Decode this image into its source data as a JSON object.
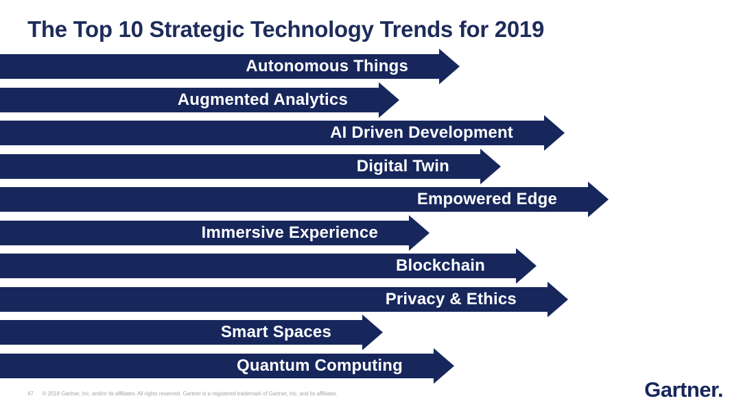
{
  "slide": {
    "title": "The Top 10 Strategic Technology Trends for 2019"
  },
  "chart_data": {
    "type": "bar",
    "orientation": "horizontal",
    "title": "The Top 10 Strategic Technology Trends for 2019",
    "categories": [
      "Autonomous Things",
      "Augmented Analytics",
      "AI Driven Development",
      "Digital Twin",
      "Empowered Edge",
      "Immersive Experience",
      "Blockchain",
      "Privacy & Ethics",
      "Smart Spaces",
      "Quantum Computing"
    ],
    "items": [
      {
        "label": "Autonomous Things",
        "length": 640
      },
      {
        "label": "Augmented Analytics",
        "length": 552
      },
      {
        "label": "AI Driven Development",
        "length": 793
      },
      {
        "label": "Digital Twin",
        "length": 700
      },
      {
        "label": "Empowered Edge",
        "length": 857
      },
      {
        "label": "Immersive Experience",
        "length": 596
      },
      {
        "label": "Blockchain",
        "length": 752
      },
      {
        "label": "Privacy & Ethics",
        "length": 798
      },
      {
        "label": "Smart Spaces",
        "length": 528
      },
      {
        "label": "Quantum Computing",
        "length": 632
      }
    ]
  },
  "footer": {
    "page_number": "47",
    "copyright": "© 2018 Gartner, Inc. and/or its affiliates. All rights reserved. Gartner is a registered trademark of Gartner, Inc. and its affiliates."
  },
  "logo": {
    "text": "Gartner."
  },
  "colors": {
    "arrow_navy": "#17275c",
    "title_navy": "#1e2c5a",
    "label_white": "#ffffff",
    "footer_gray": "#a6a6a6"
  }
}
